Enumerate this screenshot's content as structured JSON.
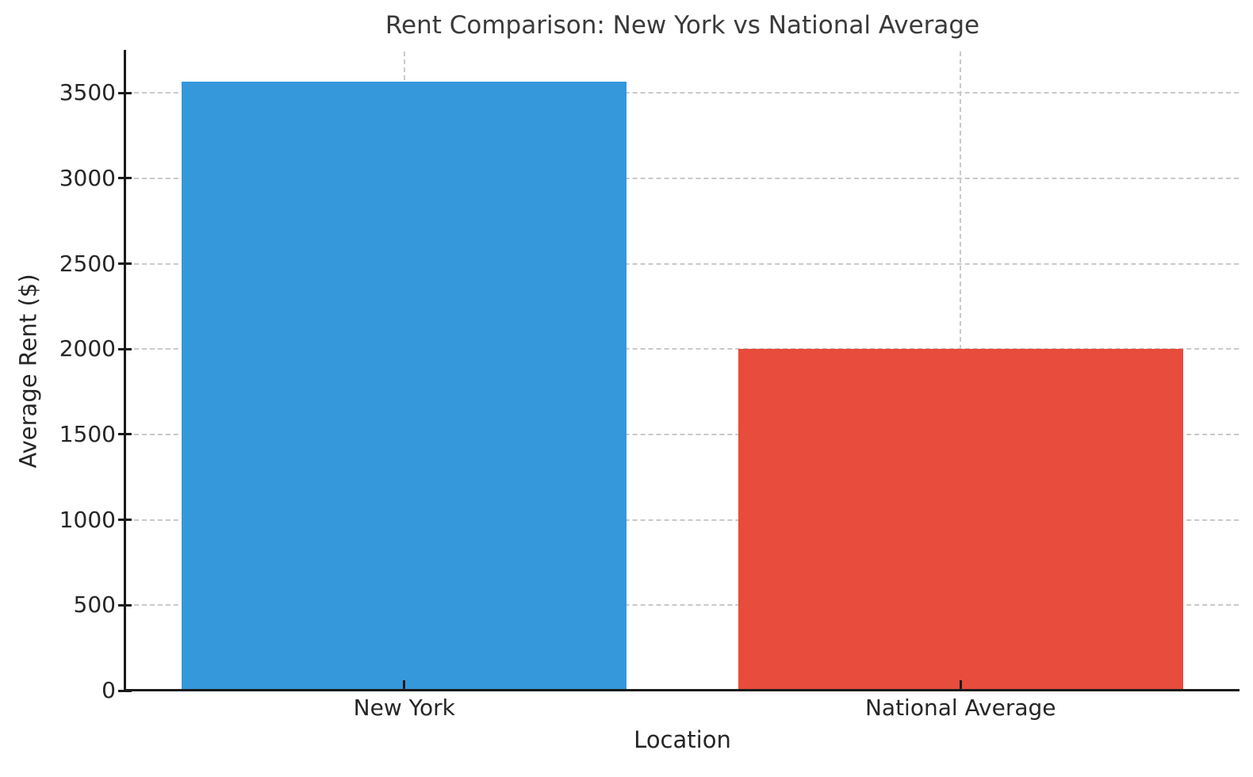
{
  "chart_data": {
    "type": "bar",
    "title": "Rent Comparison: New York vs National Average",
    "xlabel": "Location",
    "ylabel": "Average Rent ($)",
    "categories": [
      "New York",
      "National Average"
    ],
    "values": [
      3565,
      2000
    ],
    "bar_colors": [
      "#3498db",
      "#e74c3c"
    ],
    "yticks": [
      0,
      500,
      1000,
      1500,
      2000,
      2500,
      3000,
      3500
    ],
    "ylim": [
      0,
      3743
    ],
    "bar_width_fraction": 0.8,
    "grid": "dashed",
    "legend": "none"
  },
  "colors": {
    "bar_blue": "#3498db",
    "bar_red": "#e74c3c",
    "grid": "#c9c9c9",
    "spine": "#1a1a1a",
    "text": "#262626"
  }
}
